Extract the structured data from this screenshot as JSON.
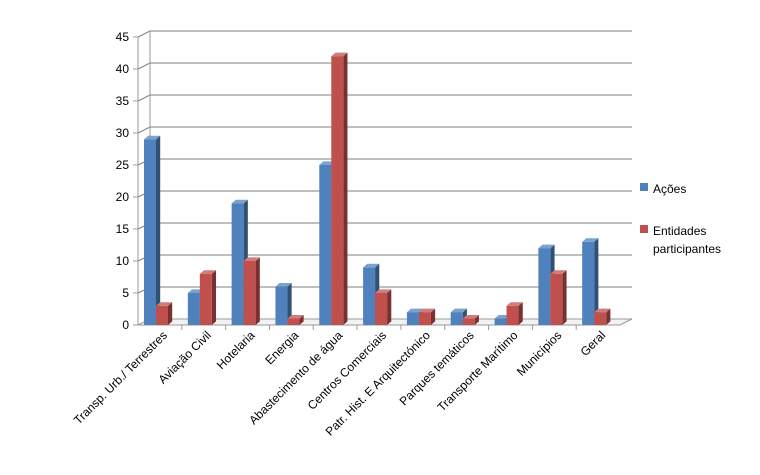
{
  "chart_data": {
    "type": "bar",
    "categories": [
      "Transp. Urb./ Terrestres",
      "Aviação Civil",
      "Hotelaria",
      "Energia",
      "Abastecimento de água",
      "Centros Comerciais",
      "Patr. Hist. E Arquitectónico",
      "Parques temáticos",
      "Transporte Marítimo",
      "Municípios",
      "Geral"
    ],
    "series": [
      {
        "name": "Ações",
        "color": "#4F81BD",
        "values": [
          29,
          5,
          19,
          6,
          25,
          9,
          2,
          2,
          1,
          12,
          13
        ]
      },
      {
        "name": "Entidades participantes",
        "color": "#C0504D",
        "values": [
          3,
          8,
          10,
          1,
          42,
          5,
          2,
          1,
          3,
          8,
          2
        ]
      }
    ],
    "ylim": [
      0,
      45
    ],
    "yticks": [
      0,
      5,
      10,
      15,
      20,
      25,
      30,
      35,
      40,
      45
    ],
    "grid": true,
    "legend": "right",
    "title": "",
    "xlabel": "",
    "ylabel": ""
  }
}
